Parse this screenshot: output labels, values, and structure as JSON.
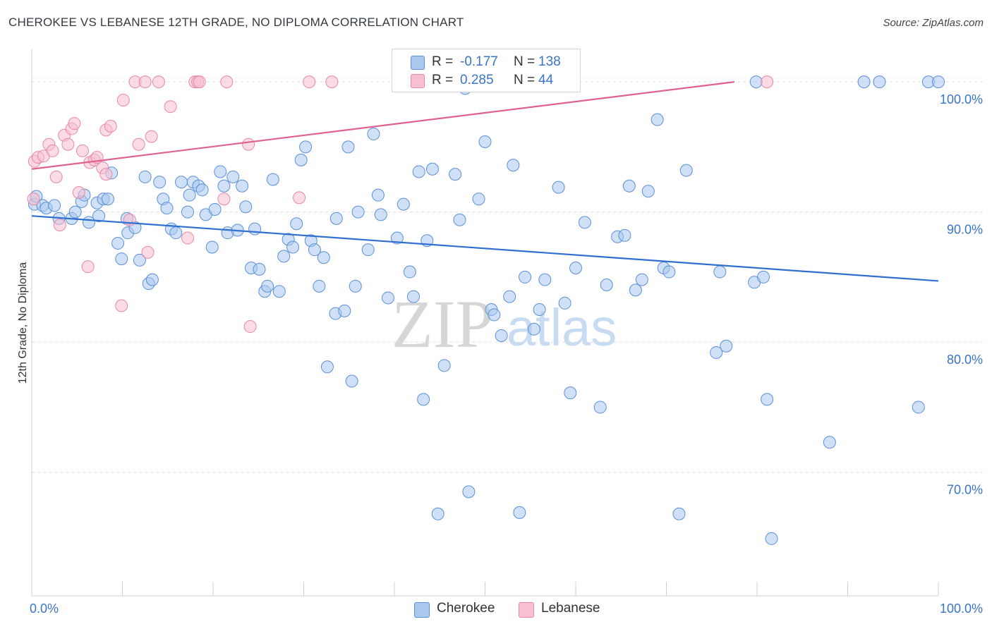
{
  "title": "CHEROKEE VS LEBANESE 12TH GRADE, NO DIPLOMA CORRELATION CHART",
  "source": "Source: ZipAtlas.com",
  "watermark": {
    "zip": "ZIP",
    "atlas": "atlas"
  },
  "legend": {
    "rows": [
      {
        "r_label": "R =",
        "r_value": "-0.177",
        "n_label": "N =",
        "n_value": "138",
        "color": "#a9c8f0",
        "stroke": "#5b8fd8"
      },
      {
        "r_label": "R =",
        "r_value": "0.285",
        "n_label": "N =",
        "n_value": "44",
        "color": "#f7bfd0",
        "stroke": "#e887a7"
      }
    ]
  },
  "bottom_legend": [
    {
      "label": "Cherokee",
      "color": "#a9c8f0",
      "stroke": "#5b8fd8"
    },
    {
      "label": "Lebanese",
      "color": "#f7bfd0",
      "stroke": "#e887a7"
    }
  ],
  "chart_data": {
    "type": "scatter",
    "title": "CHEROKEE VS LEBANESE 12TH GRADE, NO DIPLOMA CORRELATION CHART",
    "xlabel": "",
    "ylabel": "12th Grade, No Diploma",
    "xlim": [
      0,
      100
    ],
    "ylim": [
      60.5,
      102.5
    ],
    "x_tick_labels": [
      "0.0%",
      "100.0%"
    ],
    "y_ticks": [
      70,
      80,
      90,
      100
    ],
    "y_tick_labels": [
      "70.0%",
      "80.0%",
      "90.0%",
      "100.0%"
    ],
    "grid": "horizontal dashed",
    "legend_position": "top-center",
    "series": [
      {
        "name": "Cherokee",
        "color": "#5b8fd8",
        "fill": "#a9c8f0",
        "trend": {
          "x": [
            0,
            100
          ],
          "y": [
            89.7,
            84.7
          ],
          "color": "#2f6fd0"
        },
        "points": [
          [
            0.3,
            90.6
          ],
          [
            0.5,
            91.2
          ],
          [
            1.2,
            90.5
          ],
          [
            1.6,
            90.3
          ],
          [
            2.5,
            90.5
          ],
          [
            3.0,
            89.5
          ],
          [
            4.4,
            89.5
          ],
          [
            4.8,
            90.0
          ],
          [
            5.5,
            90.8
          ],
          [
            5.8,
            91.3
          ],
          [
            6.3,
            89.2
          ],
          [
            7.2,
            90.7
          ],
          [
            7.4,
            89.7
          ],
          [
            7.9,
            91.0
          ],
          [
            8.4,
            91.0
          ],
          [
            8.8,
            93.0
          ],
          [
            9.5,
            87.6
          ],
          [
            9.9,
            86.4
          ],
          [
            10.5,
            89.5
          ],
          [
            10.6,
            88.4
          ],
          [
            11.4,
            88.8
          ],
          [
            11.9,
            86.3
          ],
          [
            12.5,
            92.7
          ],
          [
            12.9,
            84.5
          ],
          [
            13.3,
            84.8
          ],
          [
            14.1,
            92.3
          ],
          [
            14.5,
            91.0
          ],
          [
            14.9,
            90.3
          ],
          [
            15.4,
            88.7
          ],
          [
            15.9,
            88.4
          ],
          [
            16.5,
            92.3
          ],
          [
            17.2,
            90.0
          ],
          [
            17.4,
            91.3
          ],
          [
            17.8,
            92.3
          ],
          [
            18.4,
            92.0
          ],
          [
            18.8,
            91.7
          ],
          [
            19.2,
            89.8
          ],
          [
            19.9,
            87.3
          ],
          [
            20.2,
            90.2
          ],
          [
            20.8,
            93.1
          ],
          [
            21.2,
            92.0
          ],
          [
            21.6,
            88.4
          ],
          [
            22.2,
            92.7
          ],
          [
            22.7,
            88.6
          ],
          [
            23.2,
            92.0
          ],
          [
            23.6,
            90.4
          ],
          [
            24.2,
            85.7
          ],
          [
            24.6,
            88.7
          ],
          [
            25.1,
            85.6
          ],
          [
            25.7,
            83.9
          ],
          [
            26.0,
            84.3
          ],
          [
            26.6,
            92.5
          ],
          [
            27.3,
            83.9
          ],
          [
            27.8,
            86.6
          ],
          [
            28.3,
            87.9
          ],
          [
            28.8,
            87.3
          ],
          [
            29.2,
            89.1
          ],
          [
            29.7,
            94.0
          ],
          [
            30.2,
            95.0
          ],
          [
            30.8,
            87.8
          ],
          [
            31.2,
            87.1
          ],
          [
            31.7,
            84.3
          ],
          [
            32.2,
            86.5
          ],
          [
            32.6,
            78.1
          ],
          [
            33.5,
            82.2
          ],
          [
            33.6,
            89.5
          ],
          [
            34.5,
            82.4
          ],
          [
            34.9,
            95.0
          ],
          [
            35.3,
            77.0
          ],
          [
            35.7,
            84.3
          ],
          [
            36.0,
            90.0
          ],
          [
            37.1,
            87.1
          ],
          [
            37.7,
            96.0
          ],
          [
            38.2,
            91.3
          ],
          [
            38.5,
            89.8
          ],
          [
            39.3,
            83.4
          ],
          [
            40.3,
            88.0
          ],
          [
            41.0,
            90.6
          ],
          [
            41.7,
            85.4
          ],
          [
            42.1,
            83.5
          ],
          [
            42.7,
            93.1
          ],
          [
            43.2,
            75.6
          ],
          [
            43.6,
            87.8
          ],
          [
            44.2,
            93.3
          ],
          [
            44.8,
            66.8
          ],
          [
            45.5,
            78.2
          ],
          [
            46.7,
            92.9
          ],
          [
            47.2,
            89.4
          ],
          [
            47.8,
            99.5
          ],
          [
            48.2,
            68.5
          ],
          [
            49.3,
            91.0
          ],
          [
            50.0,
            95.4
          ],
          [
            50.7,
            82.5
          ],
          [
            51.0,
            82.1
          ],
          [
            51.8,
            80.5
          ],
          [
            52.7,
            83.5
          ],
          [
            53.1,
            93.6
          ],
          [
            53.8,
            66.9
          ],
          [
            54.4,
            85.0
          ],
          [
            55.4,
            81.0
          ],
          [
            56.0,
            82.5
          ],
          [
            56.6,
            84.8
          ],
          [
            58.1,
            91.9
          ],
          [
            58.8,
            83.0
          ],
          [
            59.4,
            76.1
          ],
          [
            60.0,
            85.7
          ],
          [
            61.0,
            89.2
          ],
          [
            62.7,
            75.0
          ],
          [
            63.4,
            84.4
          ],
          [
            64.6,
            88.1
          ],
          [
            65.4,
            88.2
          ],
          [
            65.9,
            92.0
          ],
          [
            66.6,
            84.0
          ],
          [
            67.3,
            84.8
          ],
          [
            68.0,
            91.6
          ],
          [
            69.0,
            97.1
          ],
          [
            69.7,
            85.7
          ],
          [
            70.3,
            85.4
          ],
          [
            71.4,
            66.8
          ],
          [
            72.2,
            93.2
          ],
          [
            75.5,
            79.2
          ],
          [
            75.9,
            85.4
          ],
          [
            76.6,
            79.7
          ],
          [
            79.7,
            84.6
          ],
          [
            80.7,
            85.0
          ],
          [
            81.1,
            75.6
          ],
          [
            81.6,
            64.9
          ],
          [
            88.0,
            72.3
          ],
          [
            79.9,
            100.0
          ],
          [
            91.8,
            100.0
          ],
          [
            93.5,
            100.0
          ],
          [
            97.8,
            75.0
          ],
          [
            98.9,
            100.0
          ],
          [
            100.0,
            100.0
          ]
        ]
      },
      {
        "name": "Lebanese",
        "color": "#e887a7",
        "fill": "#f7bfd0",
        "trend": {
          "x": [
            0,
            77.5
          ],
          "y": [
            93.3,
            100.0
          ],
          "color": "#e06090"
        },
        "points": [
          [
            0.2,
            91.0
          ],
          [
            0.3,
            93.9
          ],
          [
            0.7,
            94.2
          ],
          [
            1.3,
            94.3
          ],
          [
            1.9,
            95.2
          ],
          [
            2.3,
            94.7
          ],
          [
            2.7,
            92.7
          ],
          [
            3.1,
            89.0
          ],
          [
            3.6,
            95.9
          ],
          [
            4.0,
            95.2
          ],
          [
            4.4,
            96.4
          ],
          [
            4.7,
            96.8
          ],
          [
            5.2,
            91.5
          ],
          [
            5.6,
            94.7
          ],
          [
            6.2,
            85.8
          ],
          [
            6.4,
            93.8
          ],
          [
            6.9,
            94.0
          ],
          [
            7.2,
            94.2
          ],
          [
            7.8,
            93.4
          ],
          [
            8.2,
            92.9
          ],
          [
            8.2,
            96.3
          ],
          [
            8.7,
            96.6
          ],
          [
            9.9,
            82.8
          ],
          [
            10.1,
            98.6
          ],
          [
            10.8,
            89.4
          ],
          [
            11.4,
            100.0
          ],
          [
            11.8,
            95.2
          ],
          [
            12.5,
            100.0
          ],
          [
            12.8,
            86.9
          ],
          [
            13.2,
            95.8
          ],
          [
            14.0,
            100.0
          ],
          [
            15.3,
            98.1
          ],
          [
            17.2,
            88.0
          ],
          [
            18.0,
            100.0
          ],
          [
            18.3,
            100.0
          ],
          [
            18.5,
            100.0
          ],
          [
            21.2,
            91.0
          ],
          [
            21.5,
            100.0
          ],
          [
            23.9,
            95.2
          ],
          [
            24.1,
            81.2
          ],
          [
            29.5,
            91.1
          ],
          [
            30.6,
            100.0
          ],
          [
            33.1,
            100.0
          ],
          [
            81.1,
            100.0
          ]
        ]
      }
    ]
  }
}
